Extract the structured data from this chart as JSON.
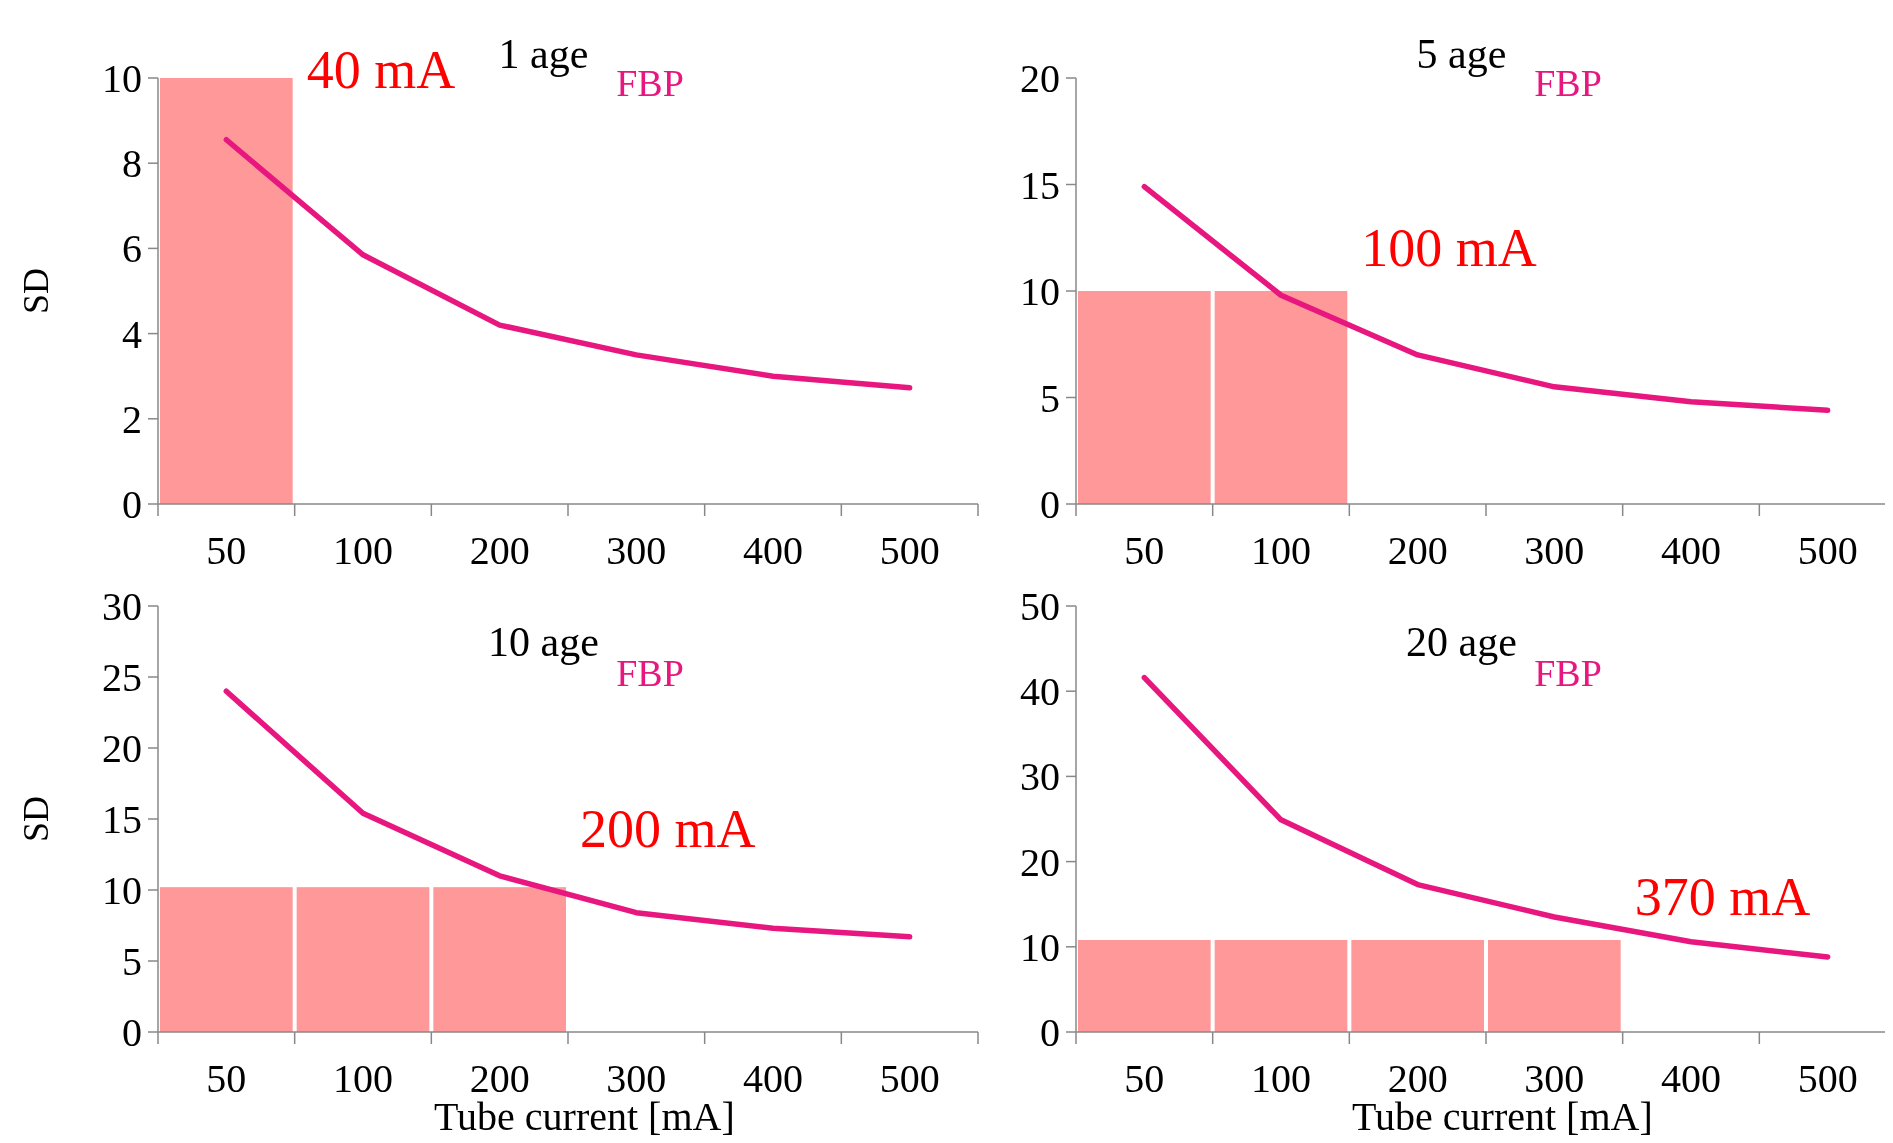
{
  "chart_data": [
    {
      "type": "line",
      "title": "1 age",
      "ylabel": "SD",
      "categories": [
        "50",
        "100",
        "200",
        "300",
        "400",
        "500"
      ],
      "ylim": [
        0,
        10
      ],
      "yticks": [
        0,
        2,
        4,
        6,
        8,
        10
      ],
      "legend": "top right",
      "annotations": [
        "40 mA"
      ],
      "series": [
        {
          "type": "bar",
          "color": "#ff9999",
          "values": [
            10,
            null,
            null,
            null,
            null,
            null
          ]
        },
        {
          "name": "FBP",
          "color": "#e8177f",
          "values": [
            8.55,
            5.85,
            4.2,
            3.5,
            3.0,
            2.73
          ]
        }
      ]
    },
    {
      "type": "line",
      "title": "5 age",
      "categories": [
        "50",
        "100",
        "200",
        "300",
        "400",
        "500"
      ],
      "ylim": [
        0,
        20
      ],
      "yticks": [
        0,
        5,
        10,
        15,
        20
      ],
      "legend": "top right",
      "annotations": [
        "100 mA"
      ],
      "series": [
        {
          "type": "bar",
          "color": "#ff9999",
          "values": [
            10,
            10,
            null,
            null,
            null,
            null
          ]
        },
        {
          "name": "FBP",
          "color": "#e8177f",
          "values": [
            14.9,
            9.8,
            7.0,
            5.5,
            4.8,
            4.4
          ]
        }
      ]
    },
    {
      "type": "line",
      "title": "10 age",
      "ylabel": "SD",
      "xlabel": "Tube current [mA]",
      "categories": [
        "50",
        "100",
        "200",
        "300",
        "400",
        "500"
      ],
      "ylim": [
        0,
        30
      ],
      "yticks": [
        0,
        5,
        10,
        15,
        20,
        25,
        30
      ],
      "legend": "top right",
      "annotations": [
        "200 mA"
      ],
      "series": [
        {
          "type": "bar",
          "color": "#ff9999",
          "values": [
            10.2,
            10.2,
            10.2,
            null,
            null,
            null
          ]
        },
        {
          "name": "FBP",
          "color": "#e8177f",
          "values": [
            24.0,
            15.4,
            11.0,
            8.4,
            7.3,
            6.7
          ]
        }
      ]
    },
    {
      "type": "line",
      "title": "20 age",
      "xlabel": "Tube current [mA]",
      "categories": [
        "50",
        "100",
        "200",
        "300",
        "400",
        "500"
      ],
      "ylim": [
        0,
        50
      ],
      "yticks": [
        0,
        10,
        20,
        30,
        40,
        50
      ],
      "legend": "top right",
      "annotations": [
        "370 mA"
      ],
      "series": [
        {
          "type": "bar",
          "color": "#ff9999",
          "values": [
            10.8,
            10.8,
            10.8,
            10.8,
            null,
            null
          ]
        },
        {
          "name": "FBP",
          "color": "#e8177f",
          "values": [
            41.6,
            24.9,
            17.3,
            13.5,
            10.6,
            8.8
          ]
        }
      ]
    }
  ]
}
